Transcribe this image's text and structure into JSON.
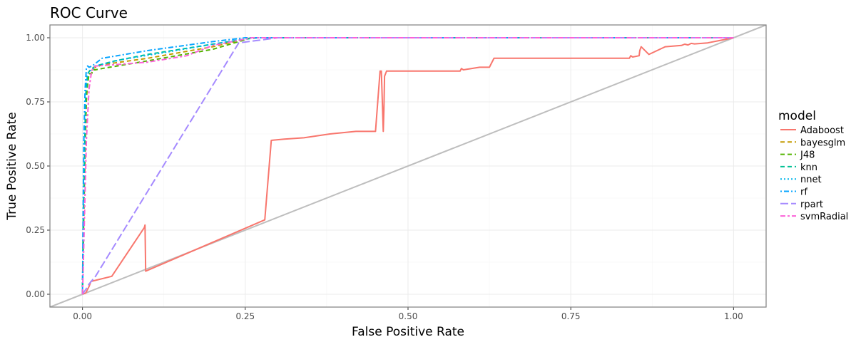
{
  "chart_data": {
    "type": "line",
    "title": "ROC Curve",
    "xlabel": "False Positive Rate",
    "ylabel": "True Positive Rate",
    "xlim": [
      -0.05,
      1.05
    ],
    "ylim": [
      -0.05,
      1.05
    ],
    "x_ticks": [
      "0.00",
      "0.25",
      "0.50",
      "0.75",
      "1.00"
    ],
    "y_ticks": [
      "0.00",
      "0.25",
      "0.50",
      "0.75",
      "1.00"
    ],
    "grid": true,
    "legend": {
      "title": "model",
      "position": "right"
    },
    "diagonal": {
      "x": [
        0,
        1
      ],
      "y": [
        0,
        1
      ],
      "color": "#bebebe"
    },
    "series": [
      {
        "name": "Adaboost",
        "color": "#F8766D",
        "dash": "solid",
        "x": [
          0,
          0.005,
          0.01,
          0.013,
          0.045,
          0.095,
          0.096,
          0.097,
          0.28,
          0.29,
          0.31,
          0.34,
          0.38,
          0.42,
          0.45,
          0.457,
          0.459,
          0.462,
          0.463,
          0.464,
          0.467,
          0.5,
          0.58,
          0.582,
          0.585,
          0.61,
          0.625,
          0.628,
          0.63,
          0.632,
          0.65,
          0.84,
          0.842,
          0.845,
          0.855,
          0.856,
          0.858,
          0.87,
          0.895,
          0.92,
          0.925,
          0.93,
          0.935,
          0.94,
          0.96,
          0.98,
          1.0
        ],
        "y": [
          0,
          0.005,
          0.03,
          0.05,
          0.07,
          0.26,
          0.27,
          0.09,
          0.29,
          0.6,
          0.605,
          0.61,
          0.625,
          0.635,
          0.635,
          0.87,
          0.87,
          0.635,
          0.72,
          0.85,
          0.87,
          0.87,
          0.87,
          0.88,
          0.875,
          0.885,
          0.885,
          0.9,
          0.91,
          0.92,
          0.92,
          0.92,
          0.93,
          0.925,
          0.93,
          0.95,
          0.965,
          0.935,
          0.965,
          0.97,
          0.975,
          0.972,
          0.978,
          0.976,
          0.98,
          0.99,
          1.0
        ]
      },
      {
        "name": "bayesglm",
        "color": "#C49A00",
        "dash": "dashed",
        "x": [
          0,
          0.002,
          0.004,
          0.006,
          0.008,
          0.01,
          0.014,
          0.016,
          0.03,
          0.1,
          0.2,
          0.25,
          0.26,
          0.4,
          0.7,
          1.0
        ],
        "y": [
          0,
          0.3,
          0.55,
          0.75,
          0.83,
          0.86,
          0.86,
          0.88,
          0.895,
          0.92,
          0.965,
          0.995,
          1.0,
          1.0,
          1.0,
          1.0
        ]
      },
      {
        "name": "J48",
        "color": "#53B400",
        "dash": "dashed",
        "x": [
          0,
          0.002,
          0.004,
          0.006,
          0.01,
          0.014,
          0.016,
          0.02,
          0.03,
          0.1,
          0.2,
          0.24,
          0.26,
          0.4,
          1.0
        ],
        "y": [
          0,
          0.35,
          0.6,
          0.78,
          0.86,
          0.86,
          0.875,
          0.875,
          0.88,
          0.91,
          0.955,
          0.985,
          1.0,
          1.0,
          1.0
        ]
      },
      {
        "name": "knn",
        "color": "#00C094",
        "dash": "dashed",
        "x": [
          0,
          0.001,
          0.003,
          0.005,
          0.008,
          0.012,
          0.02,
          0.05,
          0.1,
          0.2,
          0.25,
          0.27,
          0.5,
          1.0
        ],
        "y": [
          0,
          0.25,
          0.55,
          0.78,
          0.86,
          0.875,
          0.89,
          0.91,
          0.935,
          0.975,
          0.995,
          1.0,
          1.0,
          1.0
        ]
      },
      {
        "name": "nnet",
        "color": "#00B6EB",
        "dash": "dotted",
        "x": [
          0,
          0.001,
          0.002,
          0.003,
          0.005,
          0.007,
          0.01,
          0.015,
          0.02,
          0.06,
          0.12,
          0.2,
          0.25,
          0.26,
          0.5,
          1.0
        ],
        "y": [
          0,
          0.2,
          0.45,
          0.65,
          0.8,
          0.85,
          0.87,
          0.875,
          0.89,
          0.915,
          0.94,
          0.975,
          0.995,
          1.0,
          1.0,
          1.0
        ]
      },
      {
        "name": "rf",
        "color": "#06A4FF",
        "dash": "dotdash",
        "x": [
          0,
          0.001,
          0.002,
          0.004,
          0.006,
          0.008,
          0.01,
          0.015,
          0.03,
          0.1,
          0.2,
          0.25,
          0.26,
          0.5,
          1.0
        ],
        "y": [
          0,
          0.3,
          0.6,
          0.8,
          0.88,
          0.89,
          0.885,
          0.89,
          0.92,
          0.95,
          0.985,
          1.0,
          1.0,
          1.0,
          1.0
        ]
      },
      {
        "name": "rpart",
        "color": "#A58AFF",
        "dash": "longdash",
        "x": [
          0,
          0.008,
          0.01,
          0.02,
          0.24,
          0.3,
          0.35,
          1.0
        ],
        "y": [
          0,
          0.03,
          0.04,
          0.07,
          0.98,
          1.0,
          1.0,
          1.0
        ]
      },
      {
        "name": "svmRadial",
        "color": "#FB61D7",
        "dash": "twodash",
        "x": [
          0,
          0.001,
          0.003,
          0.006,
          0.01,
          0.014,
          0.016,
          0.02,
          0.05,
          0.1,
          0.16,
          0.2,
          0.24,
          0.26,
          0.5,
          1.0
        ],
        "y": [
          0,
          0.08,
          0.3,
          0.6,
          0.8,
          0.87,
          0.88,
          0.89,
          0.895,
          0.905,
          0.93,
          0.97,
          0.99,
          1.0,
          1.0,
          1.0
        ]
      }
    ]
  }
}
